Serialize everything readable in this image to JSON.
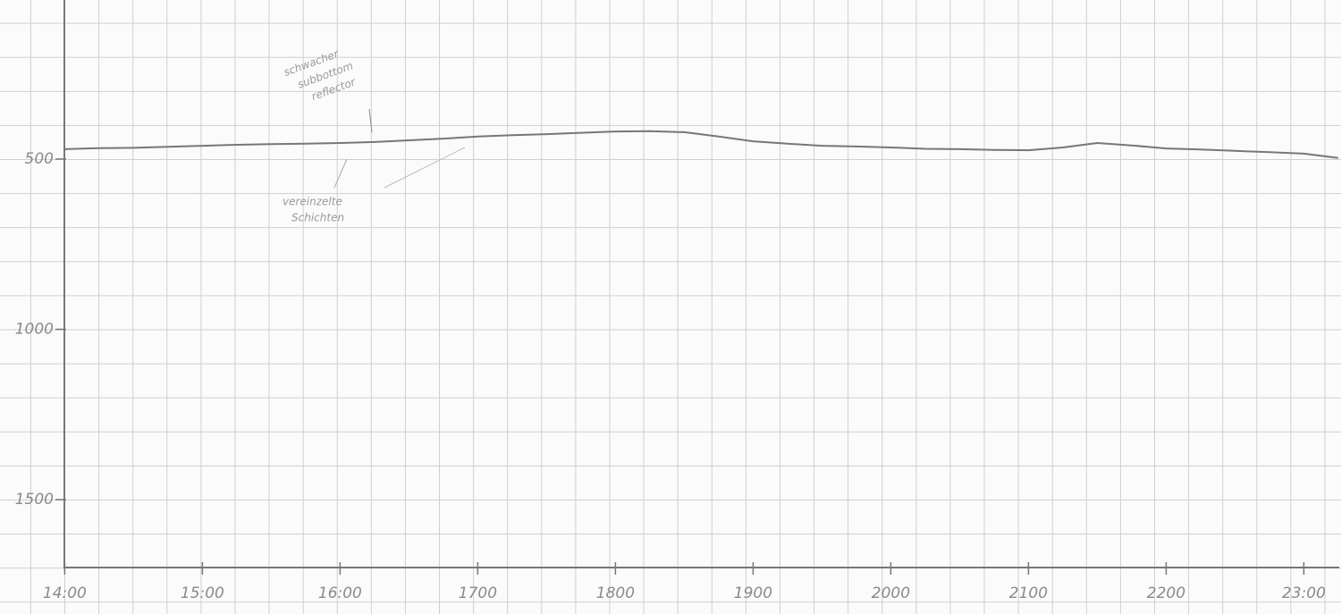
{
  "chart_data": {
    "type": "line",
    "annotations": [
      [
        "schwacher",
        "subbottom",
        "reflector"
      ],
      [
        "vereinzelte",
        "Schichten"
      ]
    ],
    "x": [
      14,
      14.25,
      14.5,
      14.75,
      15,
      15.25,
      15.5,
      15.75,
      16,
      16.25,
      16.5,
      16.75,
      17,
      17.25,
      17.5,
      17.75,
      18,
      18.25,
      18.5,
      18.75,
      19,
      19.25,
      19.5,
      19.75,
      20,
      20.25,
      20.5,
      20.75,
      21,
      21.25,
      21.5,
      21.75,
      22,
      22.25,
      22.5,
      22.75,
      23,
      23.25
    ],
    "series": [
      {
        "color": "#777777",
        "values": [
          471,
          468,
          467,
          464,
          461,
          458,
          456,
          455,
          453,
          450,
          445,
          440,
          434,
          430,
          427,
          423,
          419,
          418,
          421,
          434,
          448,
          455,
          461,
          463,
          466,
          470,
          471,
          473,
          474,
          466,
          453,
          460,
          469,
          472,
          476,
          480,
          484,
          497
        ]
      }
    ],
    "xlim": [
      13.53,
      23.27
    ],
    "xticks": [
      {
        "value": 14,
        "label": "14:00"
      },
      {
        "value": 15,
        "label": "15:00"
      },
      {
        "value": 16,
        "label": "16:00"
      },
      {
        "value": 17,
        "label": "1700"
      },
      {
        "value": 18,
        "label": "1800"
      },
      {
        "value": 19,
        "label": "1900"
      },
      {
        "value": 20,
        "label": "2000"
      },
      {
        "value": 21,
        "label": "2100"
      },
      {
        "value": 22,
        "label": "2200"
      },
      {
        "value": 23,
        "label": "23:00"
      }
    ],
    "ylim": [
      33,
      1702
    ],
    "yticks": [
      500,
      1000,
      1500
    ],
    "y_inverted": true
  }
}
